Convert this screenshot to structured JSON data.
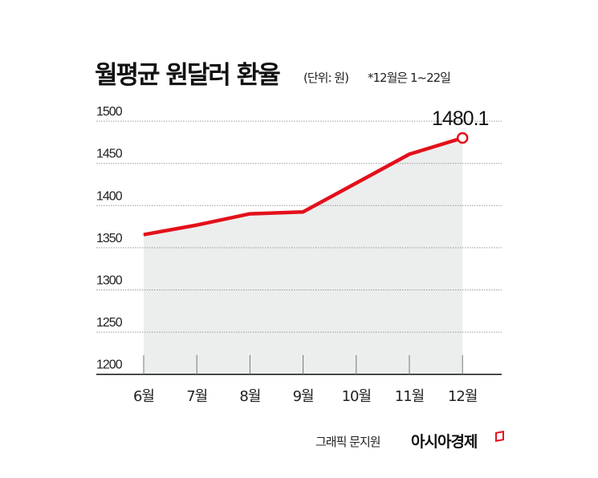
{
  "header": {
    "title": "월평균 원달러 환율",
    "unit": "(단위: 원)",
    "note": "*12월은 1~22일"
  },
  "footer": {
    "credit": "그래픽 문지원",
    "publisher": "아시아경제"
  },
  "colors": {
    "line": "#e3101b",
    "area": "#eceeee",
    "grid": "#999999",
    "text": "#111111"
  },
  "chart_data": {
    "type": "line",
    "title": "월평균 원달러 환율",
    "categories": [
      "6월",
      "7월",
      "8월",
      "9월",
      "10월",
      "11월",
      "12월"
    ],
    "values": [
      1365.5,
      1376.9,
      1390.2,
      1392.5,
      1426.7,
      1460.9,
      1480.1
    ],
    "ylim": [
      1200,
      1500
    ],
    "yticks": [
      "1200",
      "1250",
      "1300",
      "1350",
      "1400",
      "1450",
      "1500"
    ],
    "annotations": [
      {
        "category": "12월",
        "label": "1480.1"
      }
    ],
    "grid": true,
    "area_fill": true
  }
}
